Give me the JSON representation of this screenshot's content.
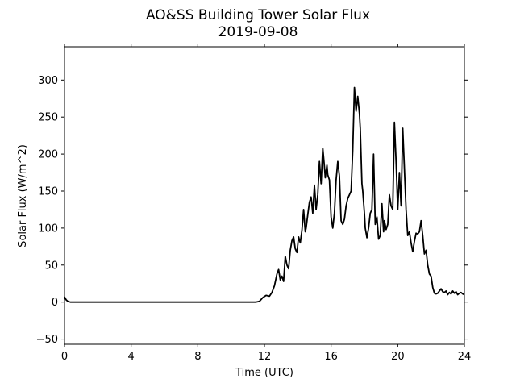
{
  "chart_data": {
    "type": "line",
    "title": "AO&SS Building Tower Solar Flux",
    "subtitle": "2019-09-08",
    "xlabel": "Time (UTC)",
    "ylabel": "Solar Flux (W/m^2)",
    "xlim": [
      0,
      24
    ],
    "ylim": [
      -57,
      345
    ],
    "xticks": [
      0,
      4,
      8,
      12,
      16,
      20,
      24
    ],
    "yticks": [
      -50,
      0,
      50,
      100,
      150,
      200,
      250,
      300
    ],
    "grid": false,
    "line_color": "#000000",
    "series": [
      {
        "x": [
          0.0,
          0.1,
          0.2,
          0.35,
          0.5,
          11.5,
          11.7,
          11.9,
          12.1,
          12.3,
          12.45,
          12.6,
          12.75,
          12.85,
          12.95,
          13.05,
          13.15,
          13.25,
          13.35,
          13.45,
          13.55,
          13.65,
          13.75,
          13.85,
          13.95,
          14.05,
          14.15,
          14.25,
          14.35,
          14.45,
          14.5,
          14.6,
          14.7,
          14.8,
          14.9,
          15.0,
          15.1,
          15.2,
          15.3,
          15.4,
          15.5,
          15.6,
          15.65,
          15.75,
          15.8,
          15.9,
          16.0,
          16.1,
          16.2,
          16.3,
          16.4,
          16.5,
          16.6,
          16.7,
          16.8,
          16.9,
          17.0,
          17.1,
          17.2,
          17.3,
          17.4,
          17.5,
          17.6,
          17.7,
          17.75,
          17.85,
          17.9,
          18.0,
          18.05,
          18.15,
          18.25,
          18.35,
          18.45,
          18.55,
          18.65,
          18.75,
          18.85,
          18.95,
          19.05,
          19.15,
          19.2,
          19.3,
          19.4,
          19.5,
          19.6,
          19.7,
          19.8,
          19.9,
          20.0,
          20.1,
          20.2,
          20.3,
          20.4,
          20.5,
          20.6,
          20.7,
          20.8,
          20.9,
          21.0,
          21.1,
          21.2,
          21.3,
          21.4,
          21.5,
          21.6,
          21.7,
          21.8,
          21.9,
          22.0,
          22.1,
          22.2,
          22.3,
          22.4,
          22.5,
          22.6,
          22.7,
          22.8,
          22.9,
          23.0,
          23.1,
          23.2,
          23.3,
          23.4,
          23.5,
          23.6,
          23.7,
          23.8,
          23.9,
          24.0
        ],
        "y": [
          7,
          3,
          1,
          0,
          0,
          0,
          1,
          6,
          9,
          8,
          13,
          22,
          38,
          44,
          30,
          35,
          28,
          62,
          50,
          45,
          70,
          83,
          88,
          72,
          67,
          88,
          80,
          97,
          125,
          95,
          100,
          118,
          135,
          142,
          120,
          158,
          125,
          145,
          190,
          160,
          208,
          183,
          168,
          185,
          172,
          165,
          115,
          100,
          120,
          165,
          190,
          170,
          110,
          105,
          112,
          130,
          140,
          145,
          150,
          205,
          290,
          258,
          278,
          255,
          235,
          160,
          150,
          120,
          100,
          87,
          100,
          120,
          125,
          200,
          105,
          115,
          85,
          90,
          133,
          95,
          110,
          98,
          105,
          145,
          130,
          125,
          243,
          190,
          125,
          175,
          130,
          235,
          180,
          125,
          90,
          95,
          80,
          68,
          82,
          93,
          92,
          95,
          110,
          90,
          65,
          70,
          50,
          38,
          35,
          20,
          12,
          11,
          12,
          15,
          18,
          14,
          13,
          15,
          10,
          13,
          11,
          15,
          12,
          14,
          10,
          12,
          13,
          11,
          10
        ]
      }
    ]
  }
}
